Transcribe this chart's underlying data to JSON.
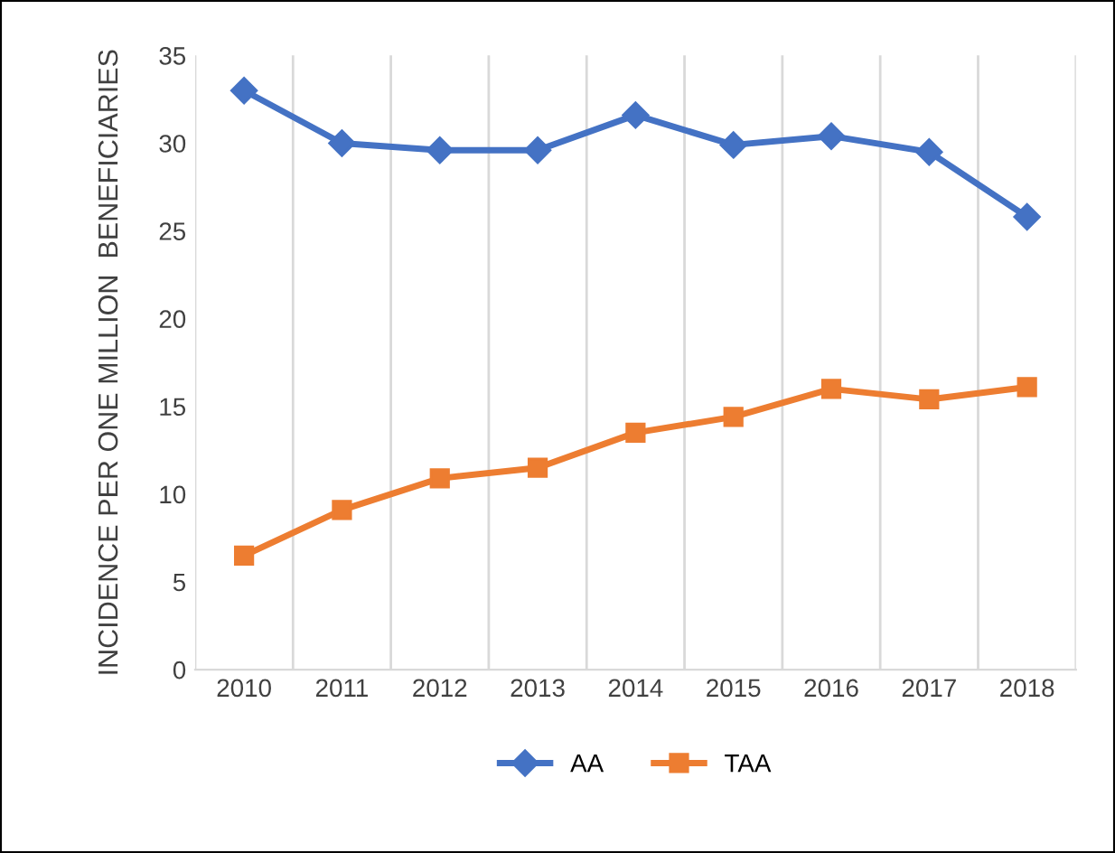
{
  "chart_data": {
    "type": "line",
    "ylabel": "INCIDENCE PER ONE MILLION  BENEFICIARIES",
    "categories": [
      "2010",
      "2011",
      "2012",
      "2013",
      "2014",
      "2015",
      "2016",
      "2017",
      "2018"
    ],
    "series": [
      {
        "name": "AA",
        "color": "#4472c4",
        "marker": "diamond",
        "values": [
          33.0,
          30.0,
          29.6,
          29.6,
          31.6,
          29.9,
          30.4,
          29.5,
          25.8
        ]
      },
      {
        "name": "TAA",
        "color": "#ed7d31",
        "marker": "square",
        "values": [
          6.5,
          9.1,
          10.9,
          11.5,
          13.5,
          14.4,
          16.0,
          15.4,
          16.1
        ]
      }
    ],
    "ylim": [
      0,
      35
    ],
    "yticks": [
      0,
      5,
      10,
      15,
      20,
      25,
      30,
      35
    ],
    "grid": "x",
    "legend": "bottom",
    "line_style": "solid"
  }
}
